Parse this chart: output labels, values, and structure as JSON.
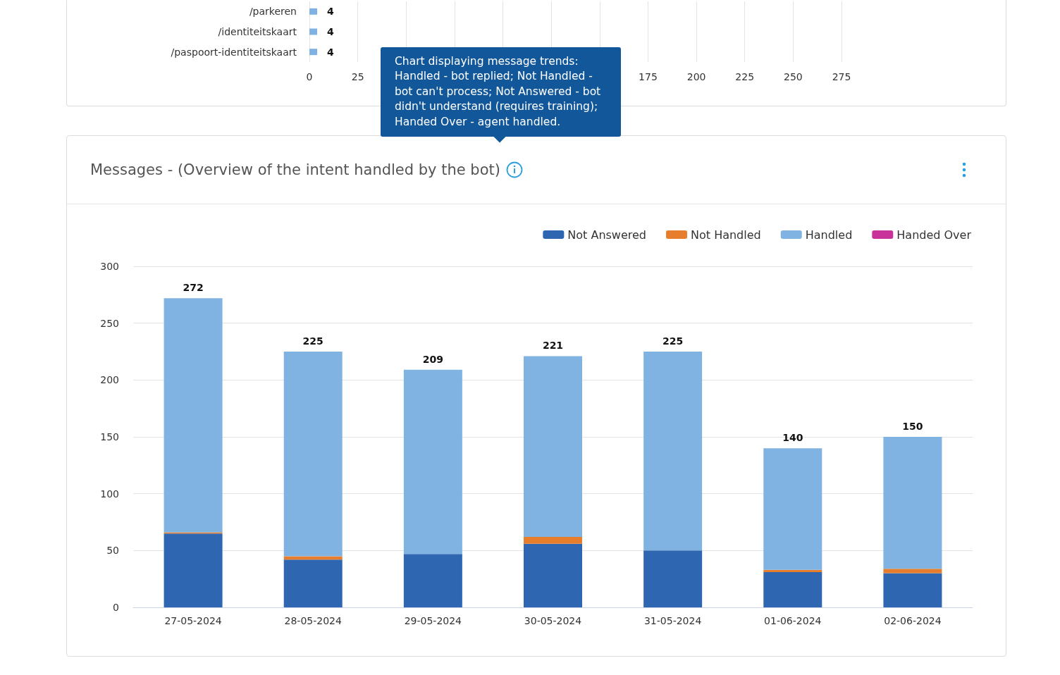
{
  "chart_data": [
    {
      "type": "bar",
      "orientation": "horizontal",
      "categories": [
        "/parkeren",
        "/identiteitskaart",
        "/paspoort-identiteitskaart"
      ],
      "values": [
        4,
        4,
        4
      ],
      "color": "#7fb2e2",
      "xlim": [
        0,
        275
      ],
      "xticks": [
        0,
        25,
        {
          "value": 50,
          "label": null
        },
        {
          "value": 75,
          "label": null
        },
        {
          "value": 100,
          "label": null
        },
        {
          "value": 125,
          "label": null
        },
        {
          "value": 150,
          "label": null
        },
        175,
        200,
        225,
        250,
        275
      ],
      "grid": "x",
      "data_labels": true
    },
    {
      "type": "bar",
      "title": "Messages - (Overview of the intent handled by the bot)",
      "annotations": [
        "Chart displaying message trends: Handled - bot replied; Not Handled - bot can't process; Not Answered - bot didn't understand (requires training); Handed Over - agent handled."
      ],
      "categories": [
        "27-05-2024",
        "28-05-2024",
        "29-05-2024",
        "30-05-2024",
        "31-05-2024",
        "01-06-2024",
        "02-06-2024"
      ],
      "stacked": true,
      "ylim": [
        0,
        300
      ],
      "yticks": [
        0,
        50,
        100,
        150,
        200,
        250,
        300
      ],
      "grid": "y",
      "legend": "top right",
      "totals": [
        "272",
        "225",
        "209",
        "221",
        "225",
        "140",
        "150"
      ],
      "series": [
        {
          "name": "Not Answered",
          "color": "#2e66b1",
          "values": [
            65,
            42,
            47,
            56,
            50,
            31,
            30
          ]
        },
        {
          "name": "Not Handled",
          "color": "#e67e2e",
          "values": [
            1,
            3,
            0,
            6,
            0,
            2,
            4
          ]
        },
        {
          "name": "Handled",
          "color": "#80b3e2",
          "values": [
            206,
            180,
            162,
            159,
            175,
            107,
            116
          ]
        },
        {
          "name": "Handed Over",
          "color": "#c8329a",
          "values": [
            0,
            0,
            0,
            0,
            0,
            0,
            0
          ]
        }
      ]
    }
  ]
}
